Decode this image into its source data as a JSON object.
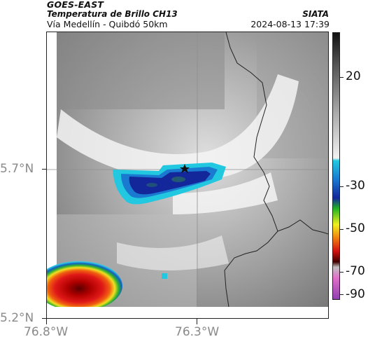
{
  "header": {
    "satellite": "GOES-EAST",
    "product": "Temperatura de Brillo CH13",
    "agency": "SIATA",
    "region": "Vía Medellín - Quibdó 50km",
    "datetime": "2024-08-13 17:39"
  },
  "axes": {
    "lat_ticks": [
      "5.7°N",
      "5.2°N"
    ],
    "lon_ticks": [
      "76.8°W",
      "76.3°W"
    ]
  },
  "colorbar": {
    "labels": [
      "20",
      "-30",
      "-50",
      "-70",
      "-90"
    ],
    "colors": {
      "warm_top": "#1a1a1a",
      "warm_mid": "#888888",
      "warm_light": "#f2f2f2",
      "cyan": "#21c8e0",
      "blue": "#1538b8",
      "navy": "#10206a",
      "green": "#22b422",
      "yellow": "#f0f020",
      "orange": "#f08010",
      "red": "#d01010",
      "darkred": "#400000",
      "pink": "#e070c8",
      "purple": "#9040b0"
    }
  },
  "map": {
    "marker": "star-marker",
    "features": [
      "cold-cloud-cell",
      "hot-warm-cell",
      "border-line"
    ]
  }
}
